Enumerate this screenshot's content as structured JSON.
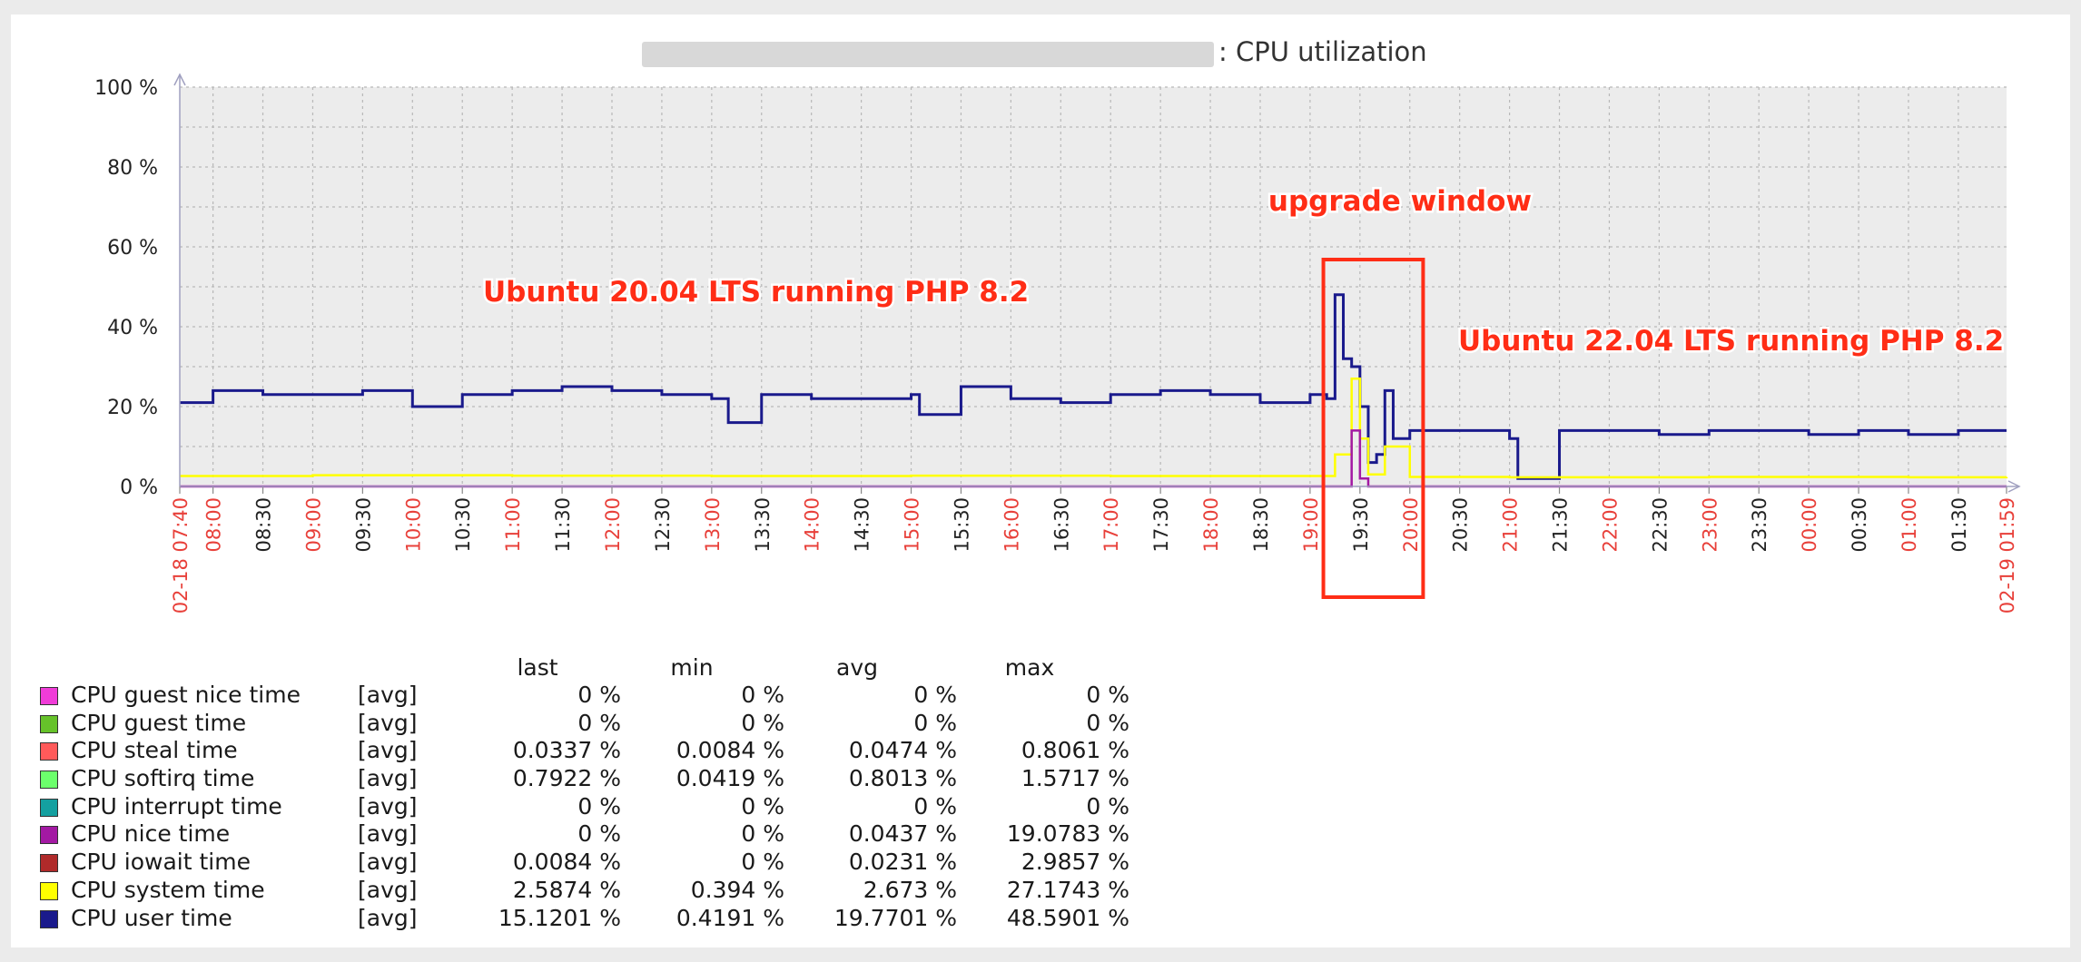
{
  "chart_data": {
    "type": "line",
    "title": ": CPU utilization",
    "y_ticks": [
      "100 %",
      "80 %",
      "60 %",
      "40 %",
      "20 %",
      "0 %"
    ],
    "ylim": [
      0,
      100
    ],
    "grid": true,
    "x_ticks": [
      {
        "label": "02-18 07:40",
        "red": true
      },
      {
        "label": "08:00",
        "red": true
      },
      {
        "label": "08:30",
        "red": false
      },
      {
        "label": "09:00",
        "red": true
      },
      {
        "label": "09:30",
        "red": false
      },
      {
        "label": "10:00",
        "red": true
      },
      {
        "label": "10:30",
        "red": false
      },
      {
        "label": "11:00",
        "red": true
      },
      {
        "label": "11:30",
        "red": false
      },
      {
        "label": "12:00",
        "red": true
      },
      {
        "label": "12:30",
        "red": false
      },
      {
        "label": "13:00",
        "red": true
      },
      {
        "label": "13:30",
        "red": false
      },
      {
        "label": "14:00",
        "red": true
      },
      {
        "label": "14:30",
        "red": false
      },
      {
        "label": "15:00",
        "red": true
      },
      {
        "label": "15:30",
        "red": false
      },
      {
        "label": "16:00",
        "red": true
      },
      {
        "label": "16:30",
        "red": false
      },
      {
        "label": "17:00",
        "red": true
      },
      {
        "label": "17:30",
        "red": false
      },
      {
        "label": "18:00",
        "red": true
      },
      {
        "label": "18:30",
        "red": false
      },
      {
        "label": "19:00",
        "red": true
      },
      {
        "label": "19:30",
        "red": false
      },
      {
        "label": "20:00",
        "red": true
      },
      {
        "label": "20:30",
        "red": false
      },
      {
        "label": "21:00",
        "red": true
      },
      {
        "label": "21:30",
        "red": false
      },
      {
        "label": "22:00",
        "red": true
      },
      {
        "label": "22:30",
        "red": false
      },
      {
        "label": "23:00",
        "red": true
      },
      {
        "label": "23:30",
        "red": false
      },
      {
        "label": "00:00",
        "red": true
      },
      {
        "label": "00:30",
        "red": false
      },
      {
        "label": "01:00",
        "red": true
      },
      {
        "label": "01:30",
        "red": false
      },
      {
        "label": "02-19 01:59",
        "red": true
      }
    ],
    "annotations": [
      {
        "text": "Ubuntu 20.04 LTS running PHP 8.2",
        "color": "#ff2d16"
      },
      {
        "text": "upgrade window",
        "color": "#ff2d16"
      },
      {
        "text": "Ubuntu 22.04 LTS running PHP 8.2",
        "color": "#ff2d16"
      }
    ],
    "highlight_window": {
      "from": "19:08",
      "to": "20:08",
      "color": "#ff2d16"
    },
    "series": [
      {
        "name": "CPU user time",
        "color": "#1a1a8c",
        "x": [
          "07:40",
          "08:00",
          "08:30",
          "09:00",
          "09:30",
          "10:00",
          "10:30",
          "11:00",
          "11:30",
          "12:00",
          "12:30",
          "13:00",
          "13:10",
          "13:30",
          "14:00",
          "14:30",
          "15:00",
          "15:05",
          "15:30",
          "16:00",
          "16:30",
          "17:00",
          "17:30",
          "18:00",
          "18:30",
          "19:00",
          "19:10",
          "19:15",
          "19:20",
          "19:25",
          "19:30",
          "19:35",
          "19:40",
          "19:45",
          "19:50",
          "19:55",
          "20:00",
          "20:30",
          "21:00",
          "21:05",
          "21:30",
          "22:00",
          "22:30",
          "23:00",
          "23:30",
          "00:00",
          "00:30",
          "01:00",
          "01:30",
          "01:59"
        ],
        "values": [
          21,
          24,
          23,
          23,
          24,
          20,
          23,
          24,
          25,
          24,
          23,
          22,
          16,
          23,
          22,
          22,
          23,
          18,
          25,
          22,
          21,
          23,
          24,
          23,
          21,
          23,
          22,
          48,
          32,
          30,
          20,
          6,
          8,
          24,
          12,
          12,
          14,
          14,
          12,
          2,
          14,
          14,
          13,
          14,
          14,
          13,
          14,
          13,
          14,
          14
        ]
      },
      {
        "name": "CPU system time",
        "color": "#ffff00",
        "x": [
          "07:40",
          "09:00",
          "11:00",
          "13:00",
          "15:00",
          "17:00",
          "19:00",
          "19:15",
          "19:25",
          "19:30",
          "19:35",
          "19:45",
          "20:00",
          "21:00",
          "23:00",
          "01:00",
          "01:59"
        ],
        "values": [
          2.6,
          2.8,
          2.7,
          2.6,
          2.7,
          2.6,
          2.6,
          8,
          27,
          12,
          3,
          10,
          2.4,
          2.3,
          2.4,
          2.3,
          2.4
        ]
      },
      {
        "name": "CPU nice time",
        "color": "#a319a3",
        "x": [
          "07:40",
          "19:15",
          "19:25",
          "19:30",
          "19:35",
          "20:00",
          "01:59"
        ],
        "values": [
          0,
          0,
          14,
          2,
          0,
          0,
          0
        ]
      }
    ]
  },
  "legend": {
    "headers": [
      "last",
      "min",
      "avg",
      "max"
    ],
    "rows": [
      {
        "name": "CPU guest nice time",
        "fn": "[avg]",
        "color": "#f03cd8",
        "last": "0 %",
        "min": "0 %",
        "avg": "0 %",
        "max": "0 %"
      },
      {
        "name": "CPU guest time",
        "fn": "[avg]",
        "color": "#66c22a",
        "last": "0 %",
        "min": "0 %",
        "avg": "0 %",
        "max": "0 %"
      },
      {
        "name": "CPU steal time",
        "fn": "[avg]",
        "color": "#ff5a5a",
        "last": "0.0337 %",
        "min": "0.0084 %",
        "avg": "0.0474 %",
        "max": "0.8061 %"
      },
      {
        "name": "CPU softirq time",
        "fn": "[avg]",
        "color": "#6cff6c",
        "last": "0.7922 %",
        "min": "0.0419 %",
        "avg": "0.8013 %",
        "max": "1.5717 %"
      },
      {
        "name": "CPU interrupt time",
        "fn": "[avg]",
        "color": "#14a0a0",
        "last": "0 %",
        "min": "0 %",
        "avg": "0 %",
        "max": "0 %"
      },
      {
        "name": "CPU nice time",
        "fn": "[avg]",
        "color": "#a319a3",
        "last": "0 %",
        "min": "0 %",
        "avg": "0.0437 %",
        "max": "19.0783 %"
      },
      {
        "name": "CPU iowait time",
        "fn": "[avg]",
        "color": "#b02a2a",
        "last": "0.0084 %",
        "min": "0 %",
        "avg": "0.0231 %",
        "max": "2.9857 %"
      },
      {
        "name": "CPU system time",
        "fn": "[avg]",
        "color": "#ffff00",
        "last": "2.5874 %",
        "min": "0.394 %",
        "avg": "2.673 %",
        "max": "27.1743 %"
      },
      {
        "name": "CPU user time",
        "fn": "[avg]",
        "color": "#1a1a8c",
        "last": "15.1201 %",
        "min": "0.4191 %",
        "avg": "19.7701 %",
        "max": "48.5901 %"
      }
    ]
  }
}
